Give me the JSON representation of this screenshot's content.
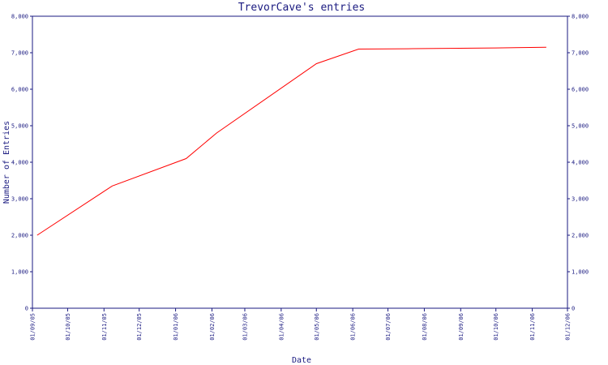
{
  "chart_data": {
    "type": "line",
    "title": "TrevorCave's entries",
    "xlabel": "Date",
    "ylabel": "Number of Entries",
    "ylim": [
      0,
      8000
    ],
    "yticks": [
      0,
      1000,
      2000,
      3000,
      4000,
      5000,
      6000,
      7000,
      8000
    ],
    "ytick_labels": [
      "0",
      "1,000",
      "2,000",
      "3,000",
      "4,000",
      "5,000",
      "6,000",
      "7,000",
      "8,000"
    ],
    "xlim": [
      "2005-09-01",
      "2006-12-01"
    ],
    "xtick_dates": [
      "2005-09-01",
      "2005-10-01",
      "2005-11-01",
      "2005-12-01",
      "2006-01-01",
      "2006-02-01",
      "2006-03-01",
      "2006-04-01",
      "2006-05-01",
      "2006-06-01",
      "2006-07-01",
      "2006-08-01",
      "2006-09-01",
      "2006-10-01",
      "2006-11-01",
      "2006-12-01"
    ],
    "xtick_labels": [
      "01/09/05",
      "01/10/05",
      "01/11/05",
      "01/12/05",
      "01/01/06",
      "01/02/06",
      "01/03/06",
      "01/04/06",
      "01/05/06",
      "01/06/06",
      "01/07/06",
      "01/08/06",
      "01/09/06",
      "01/10/06",
      "01/11/06",
      "01/12/06"
    ],
    "series": [
      {
        "name": "",
        "color": "#ff0000",
        "x": [
          "2005-09-05",
          "2005-11-08",
          "2006-01-10",
          "2006-02-05",
          "2006-05-01",
          "2006-06-06",
          "2006-07-18",
          "2006-10-01",
          "2006-11-13"
        ],
        "y": [
          2000,
          3350,
          4100,
          4800,
          6700,
          7100,
          7110,
          7130,
          7150
        ]
      }
    ],
    "grid": false,
    "axis_color": "#1a1a80"
  }
}
